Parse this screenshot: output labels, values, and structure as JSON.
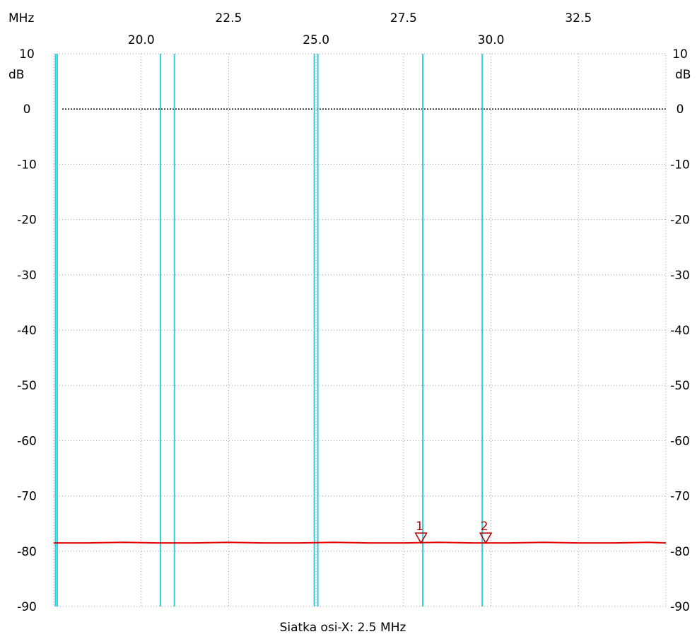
{
  "chart_data": {
    "type": "line",
    "x_unit_label": "MHz",
    "y_unit_label": "dB",
    "x_range": [
      17.5,
      35.0
    ],
    "y_range": [
      -90,
      10
    ],
    "x_ticks_top_row": [
      "22.5",
      "27.5",
      "32.5"
    ],
    "x_ticks_bottom_row": [
      "20.0",
      "25.0",
      "30.0"
    ],
    "y_ticks": [
      "10",
      "0",
      "-10",
      "-20",
      "-30",
      "-40",
      "-50",
      "-60",
      "-70",
      "-80",
      "-90"
    ],
    "reference_level": 0,
    "grid": true,
    "cyan_markers_mhz": [
      17.55,
      17.6,
      20.55,
      20.95,
      24.95,
      25.05,
      28.05,
      29.75
    ],
    "series": [
      {
        "color": "#e60000",
        "x": [
          17.5,
          18.5,
          19.5,
          20.5,
          21.5,
          22.5,
          23.5,
          24.5,
          25.5,
          26.5,
          27.5,
          28.5,
          29.5,
          30.5,
          31.5,
          32.5,
          33.5,
          34.5,
          35.0
        ],
        "y": [
          -78.5,
          -78.5,
          -78.4,
          -78.5,
          -78.5,
          -78.4,
          -78.5,
          -78.5,
          -78.4,
          -78.5,
          -78.5,
          -78.4,
          -78.5,
          -78.5,
          -78.4,
          -78.5,
          -78.5,
          -78.4,
          -78.5
        ]
      }
    ],
    "markers": [
      {
        "label": "1",
        "x": 28.0,
        "y": -78.5
      },
      {
        "label": "2",
        "x": 29.85,
        "y": -78.5
      }
    ],
    "caption": "Siatka osi-X: 2.5 MHz"
  },
  "colors": {
    "background": "#ffffff",
    "grid": "#a0a0a0",
    "frame": "#000000",
    "cyan": "#33ccdd",
    "trace": "#e60000",
    "marker": "#b00000"
  }
}
